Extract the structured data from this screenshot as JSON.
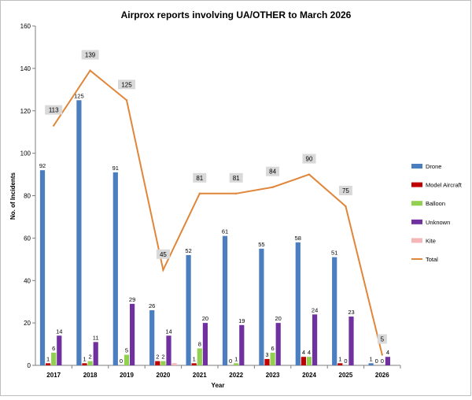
{
  "chart_data": {
    "type": "bar",
    "title": "Airprox reports involving UA/OTHER to March 2026",
    "xlabel": "Year",
    "ylabel": "No. of Incidents",
    "ylim": [
      0,
      160
    ],
    "yticks": [
      0,
      20,
      40,
      60,
      80,
      100,
      120,
      140,
      160
    ],
    "categories": [
      "2017",
      "2018",
      "2019",
      "2020",
      "2021",
      "2022",
      "2023",
      "2024",
      "2025",
      "2026"
    ],
    "series": [
      {
        "name": "Drone",
        "color": "#4a7ebf",
        "values": [
          92,
          125,
          91,
          26,
          52,
          61,
          55,
          58,
          51,
          1
        ]
      },
      {
        "name": "Model Aircraft",
        "color": "#c00000",
        "values": [
          1,
          1,
          0,
          2,
          1,
          0,
          3,
          4,
          1,
          0
        ]
      },
      {
        "name": "Balloon",
        "color": "#92d050",
        "values": [
          6,
          2,
          5,
          2,
          8,
          1,
          6,
          4,
          0,
          0
        ]
      },
      {
        "name": "Unknown",
        "color": "#7030a0",
        "values": [
          14,
          11,
          29,
          14,
          20,
          19,
          20,
          24,
          23,
          4
        ]
      },
      {
        "name": "Kite",
        "color": "#f4b6b6",
        "values": [
          null,
          null,
          null,
          1,
          0,
          0,
          0,
          0,
          0,
          0
        ]
      }
    ],
    "total": {
      "name": "Total",
      "type": "line",
      "color": "#e0863a",
      "values": [
        113,
        139,
        125,
        45,
        81,
        81,
        84,
        90,
        75,
        5
      ]
    },
    "grid": false,
    "legend": "right"
  }
}
